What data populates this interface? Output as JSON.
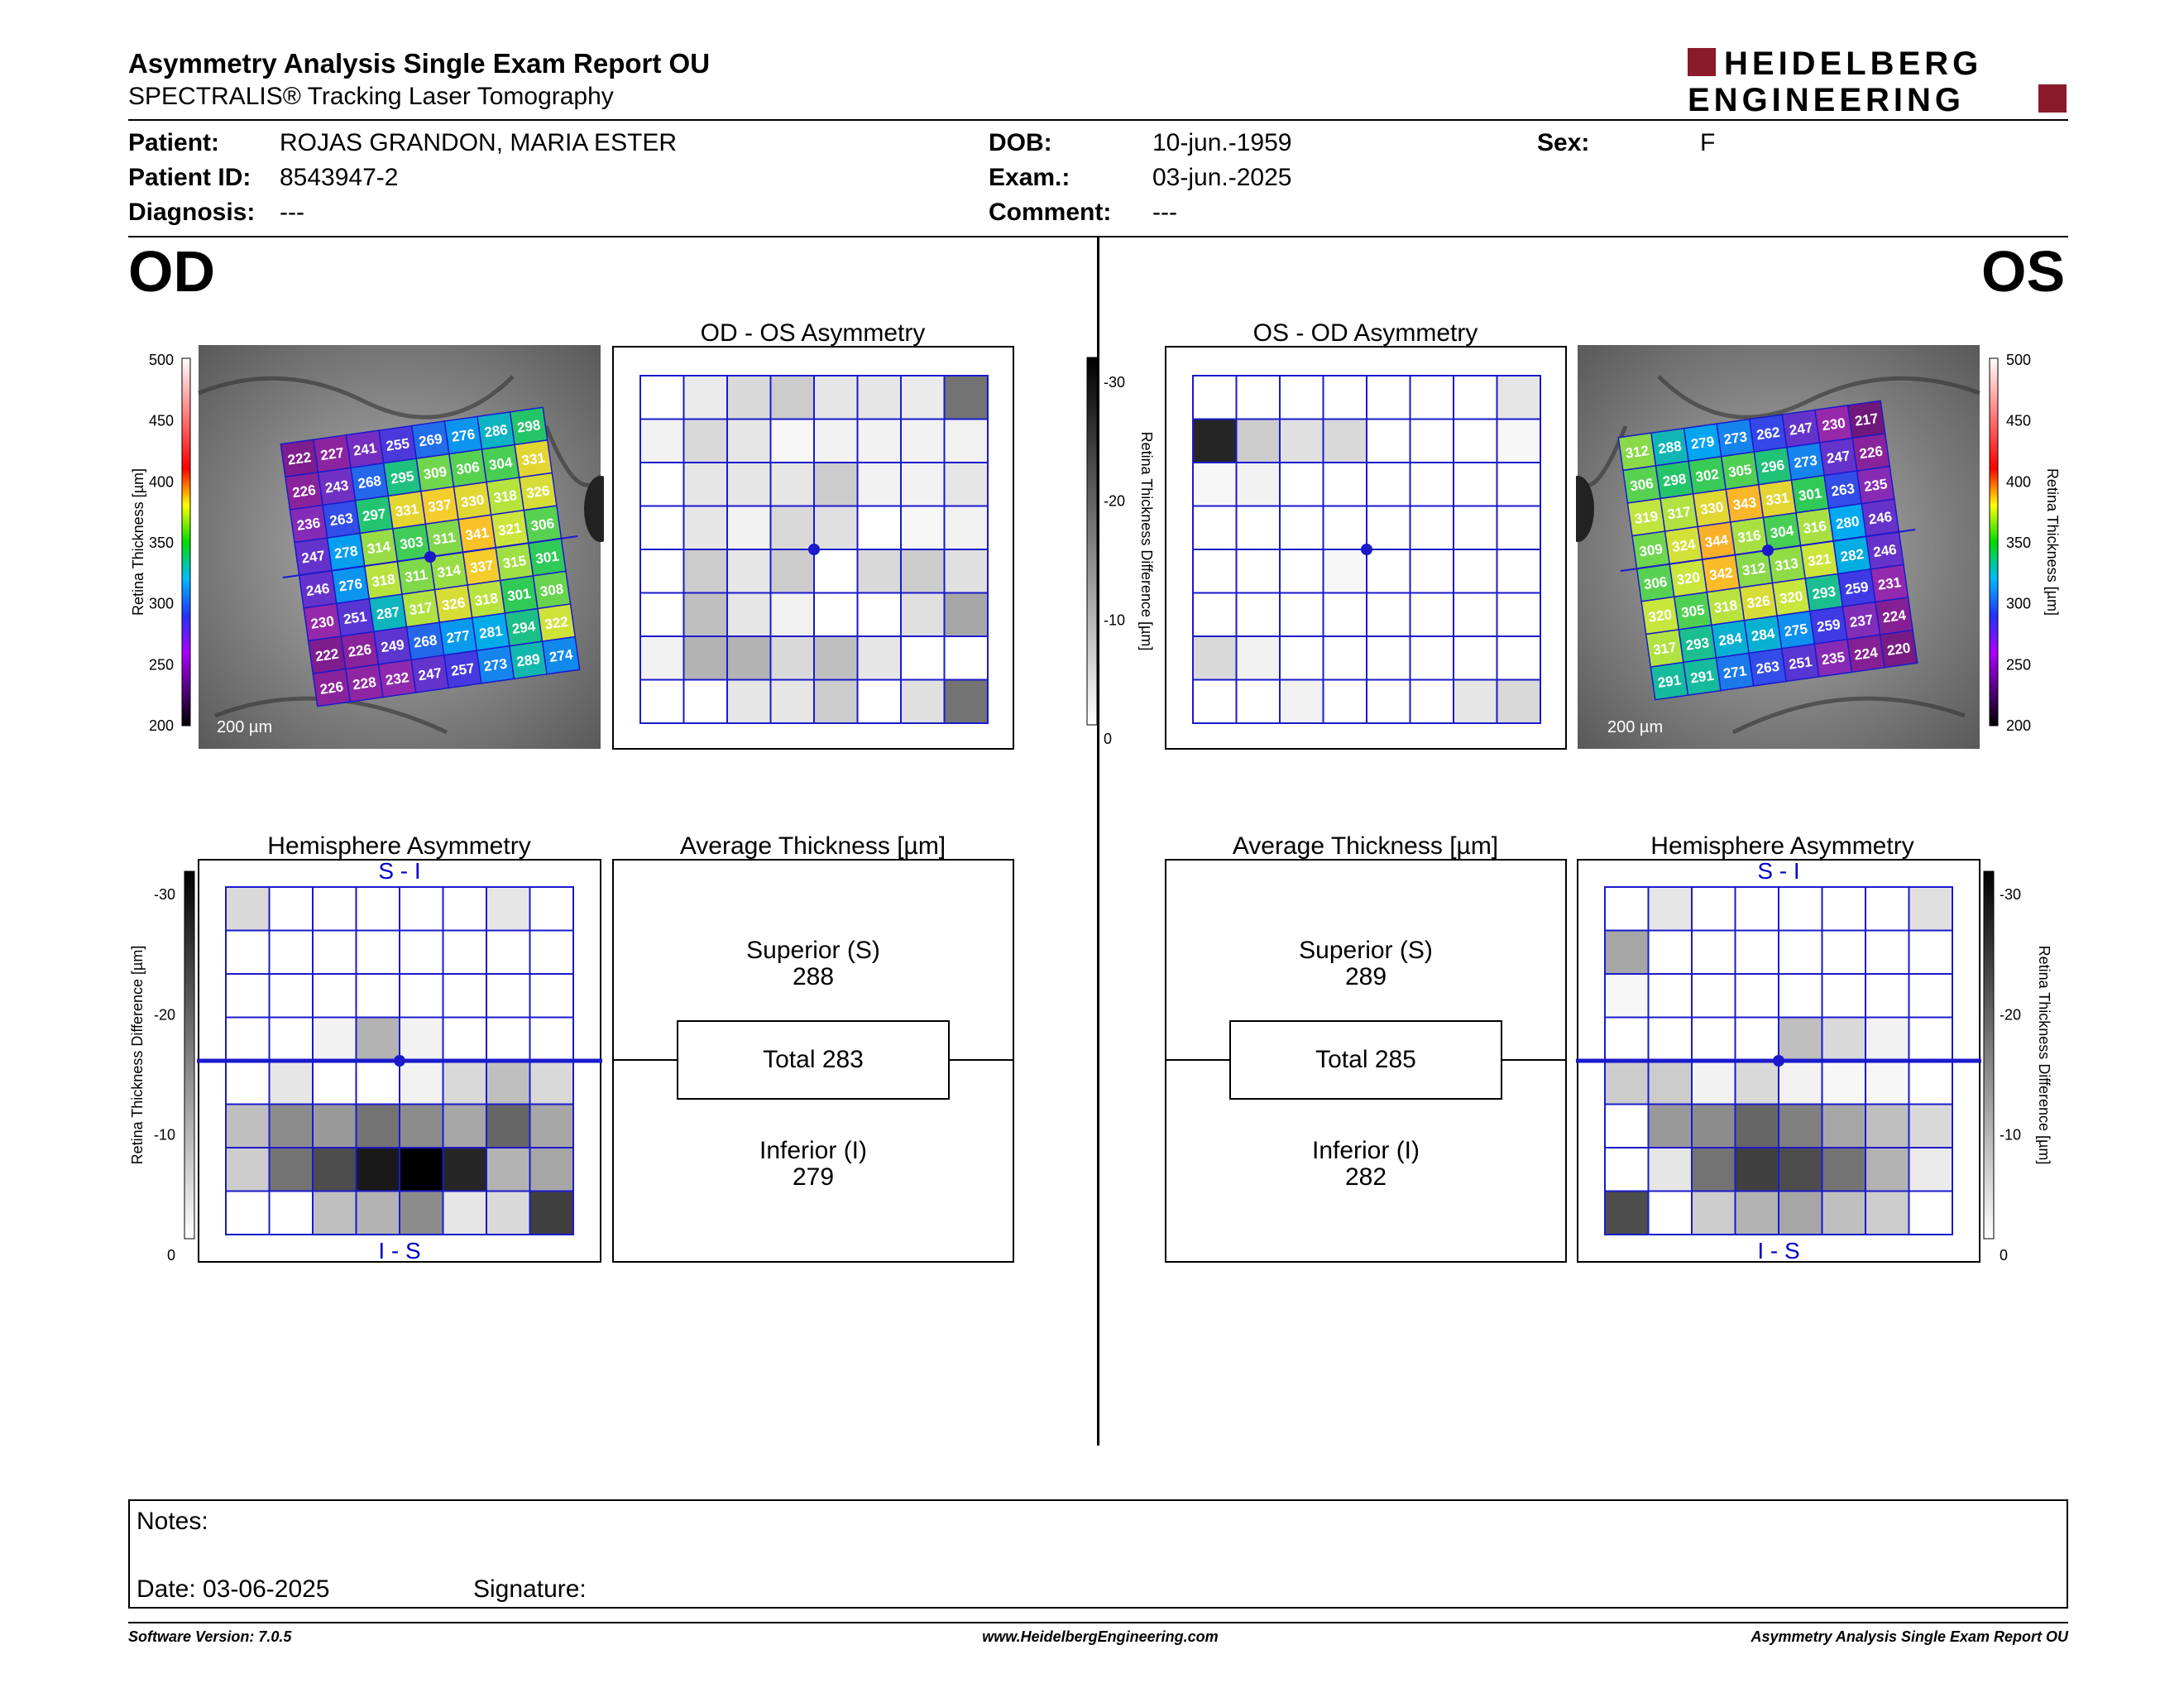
{
  "header": {
    "title": "Asymmetry Analysis Single Exam Report OU",
    "subtitle": "SPECTRALIS® Tracking Laser Tomography",
    "logo_line1": "HEIDELBERG",
    "logo_line2": "ENGINEERING",
    "brand_color": "#8B1A2B"
  },
  "patient": {
    "patient_label": "Patient:",
    "patient_value": "ROJAS GRANDON, MARIA ESTER",
    "id_label": "Patient ID:",
    "id_value": "8543947-2",
    "diagnosis_label": "Diagnosis:",
    "diagnosis_value": "---",
    "dob_label": "DOB:",
    "dob_value": "10-jun.-1959",
    "exam_label": "Exam.:",
    "exam_value": "03-jun.-2025",
    "comment_label": "Comment:",
    "comment_value": "---",
    "sex_label": "Sex:",
    "sex_value": "F"
  },
  "od": {
    "eye_label": "OD",
    "asym_title": "OD - OS Asymmetry",
    "hemi_title": "Hemisphere Asymmetry",
    "avg_title": "Average Thickness [µm]",
    "hemi_top_label": "S - I",
    "hemi_bottom_label": "I - S",
    "superior_label": "Superior (S)",
    "superior_value": "288",
    "total_label": "Total 283",
    "inferior_label": "Inferior (I)",
    "inferior_value": "279",
    "scale_label": "200 µm",
    "thickness": [
      [
        222,
        227,
        241,
        255,
        269,
        276,
        286,
        298
      ],
      [
        226,
        243,
        268,
        295,
        309,
        306,
        304,
        331
      ],
      [
        236,
        263,
        297,
        331,
        337,
        330,
        318,
        326
      ],
      [
        247,
        278,
        314,
        303,
        311,
        341,
        321,
        306
      ],
      [
        246,
        276,
        318,
        311,
        314,
        337,
        315,
        301
      ],
      [
        230,
        251,
        287,
        317,
        326,
        318,
        301,
        308
      ],
      [
        222,
        226,
        249,
        268,
        277,
        281,
        294,
        322
      ],
      [
        226,
        228,
        232,
        247,
        257,
        273,
        289,
        274
      ]
    ],
    "asym_grid": [
      [
        0,
        0.08,
        0.15,
        0.2,
        0.1,
        0.1,
        0.08,
        0.55
      ],
      [
        0.05,
        0.15,
        0.1,
        0.03,
        0.05,
        0.05,
        0.05,
        0.05
      ],
      [
        0,
        0.1,
        0.1,
        0.1,
        0.2,
        0.05,
        0.05,
        0.1
      ],
      [
        0,
        0.1,
        0.05,
        0.15,
        0.12,
        0,
        0.03,
        0.05
      ],
      [
        0,
        0.2,
        0.1,
        0.2,
        0,
        0.15,
        0.2,
        0.12
      ],
      [
        0,
        0.25,
        0.1,
        0.05,
        0,
        0,
        0.12,
        0.35
      ],
      [
        0.05,
        0.3,
        0.3,
        0.15,
        0.25,
        0.1,
        0,
        0
      ],
      [
        0,
        0,
        0.1,
        0.1,
        0.2,
        0,
        0.12,
        0.55
      ]
    ],
    "hemi_grid": [
      [
        0.15,
        0,
        0,
        0,
        0,
        0,
        0.1,
        0
      ],
      [
        0,
        0,
        0,
        0,
        0,
        0,
        0,
        0
      ],
      [
        0,
        0,
        0,
        0,
        0,
        0,
        0,
        0
      ],
      [
        0,
        0,
        0.05,
        0.3,
        0.05,
        0,
        0,
        0
      ],
      [
        0,
        0.1,
        0,
        0,
        0.05,
        0.15,
        0.25,
        0.15
      ],
      [
        0.25,
        0.45,
        0.4,
        0.55,
        0.45,
        0.35,
        0.6,
        0.35
      ],
      [
        0.2,
        0.55,
        0.7,
        0.9,
        1.0,
        0.85,
        0.3,
        0.35
      ],
      [
        0,
        0,
        0.25,
        0.3,
        0.45,
        0.1,
        0.15,
        0.75
      ]
    ]
  },
  "os": {
    "eye_label": "OS",
    "asym_title": "OS - OD Asymmetry",
    "hemi_title": "Hemisphere Asymmetry",
    "avg_title": "Average Thickness [µm]",
    "hemi_top_label": "S - I",
    "hemi_bottom_label": "I - S",
    "superior_label": "Superior (S)",
    "superior_value": "289",
    "total_label": "Total 285",
    "inferior_label": "Inferior (I)",
    "inferior_value": "282",
    "scale_label": "200 µm",
    "thickness": [
      [
        312,
        288,
        279,
        273,
        262,
        247,
        230,
        217
      ],
      [
        306,
        298,
        302,
        305,
        296,
        273,
        247,
        226
      ],
      [
        319,
        317,
        330,
        343,
        331,
        301,
        263,
        235
      ],
      [
        309,
        324,
        344,
        316,
        304,
        316,
        280,
        246
      ],
      [
        306,
        320,
        342,
        312,
        313,
        321,
        282,
        246
      ],
      [
        320,
        305,
        318,
        326,
        320,
        293,
        259,
        231
      ],
      [
        317,
        293,
        284,
        284,
        275,
        259,
        237,
        224
      ],
      [
        291,
        291,
        271,
        263,
        251,
        235,
        224,
        220
      ]
    ],
    "asym_grid": [
      [
        0,
        0,
        0,
        0,
        0,
        0,
        0,
        0.1
      ],
      [
        0.85,
        0.2,
        0.12,
        0.15,
        0,
        0,
        0,
        0.03
      ],
      [
        0.03,
        0.05,
        0,
        0,
        0,
        0,
        0,
        0
      ],
      [
        0,
        0,
        0,
        0,
        0,
        0,
        0,
        0
      ],
      [
        0,
        0,
        0,
        0.03,
        0,
        0,
        0,
        0
      ],
      [
        0,
        0,
        0,
        0,
        0,
        0,
        0,
        0
      ],
      [
        0.15,
        0.05,
        0,
        0,
        0,
        0,
        0,
        0
      ],
      [
        0,
        0,
        0.05,
        0,
        0,
        0,
        0.1,
        0.15
      ]
    ],
    "hemi_grid": [
      [
        0,
        0.1,
        0,
        0,
        0,
        0,
        0,
        0.12
      ],
      [
        0.35,
        0,
        0,
        0,
        0,
        0,
        0,
        0
      ],
      [
        0.03,
        0,
        0,
        0,
        0,
        0,
        0,
        0
      ],
      [
        0,
        0,
        0,
        0,
        0.25,
        0.15,
        0.05,
        0
      ],
      [
        0.2,
        0.2,
        0.05,
        0.15,
        0.05,
        0.03,
        0.03,
        0
      ],
      [
        0,
        0.4,
        0.45,
        0.6,
        0.5,
        0.35,
        0.25,
        0.15
      ],
      [
        0,
        0.1,
        0.55,
        0.75,
        0.7,
        0.55,
        0.3,
        0.08
      ],
      [
        0.7,
        0,
        0.2,
        0.3,
        0.35,
        0.25,
        0.2,
        0
      ]
    ]
  },
  "scales": {
    "thickness_label": "Retina  Thickness [µm]",
    "thickness_ticks": [
      "500",
      "450",
      "400",
      "350",
      "300",
      "250",
      "200"
    ],
    "diff_label": "Retina Thickness Difference [µm]",
    "diff_ticks": [
      "-30",
      "-20",
      "-10",
      "0"
    ]
  },
  "notes": {
    "notes_label": "Notes:",
    "date_label": "Date: 03-06-2025",
    "signature_label": "Signature:"
  },
  "footer": {
    "version": "Software Version: 7.0.5",
    "website": "www.HeidelbergEngineering.com",
    "report_name": "Asymmetry Analysis Single Exam Report OU"
  }
}
